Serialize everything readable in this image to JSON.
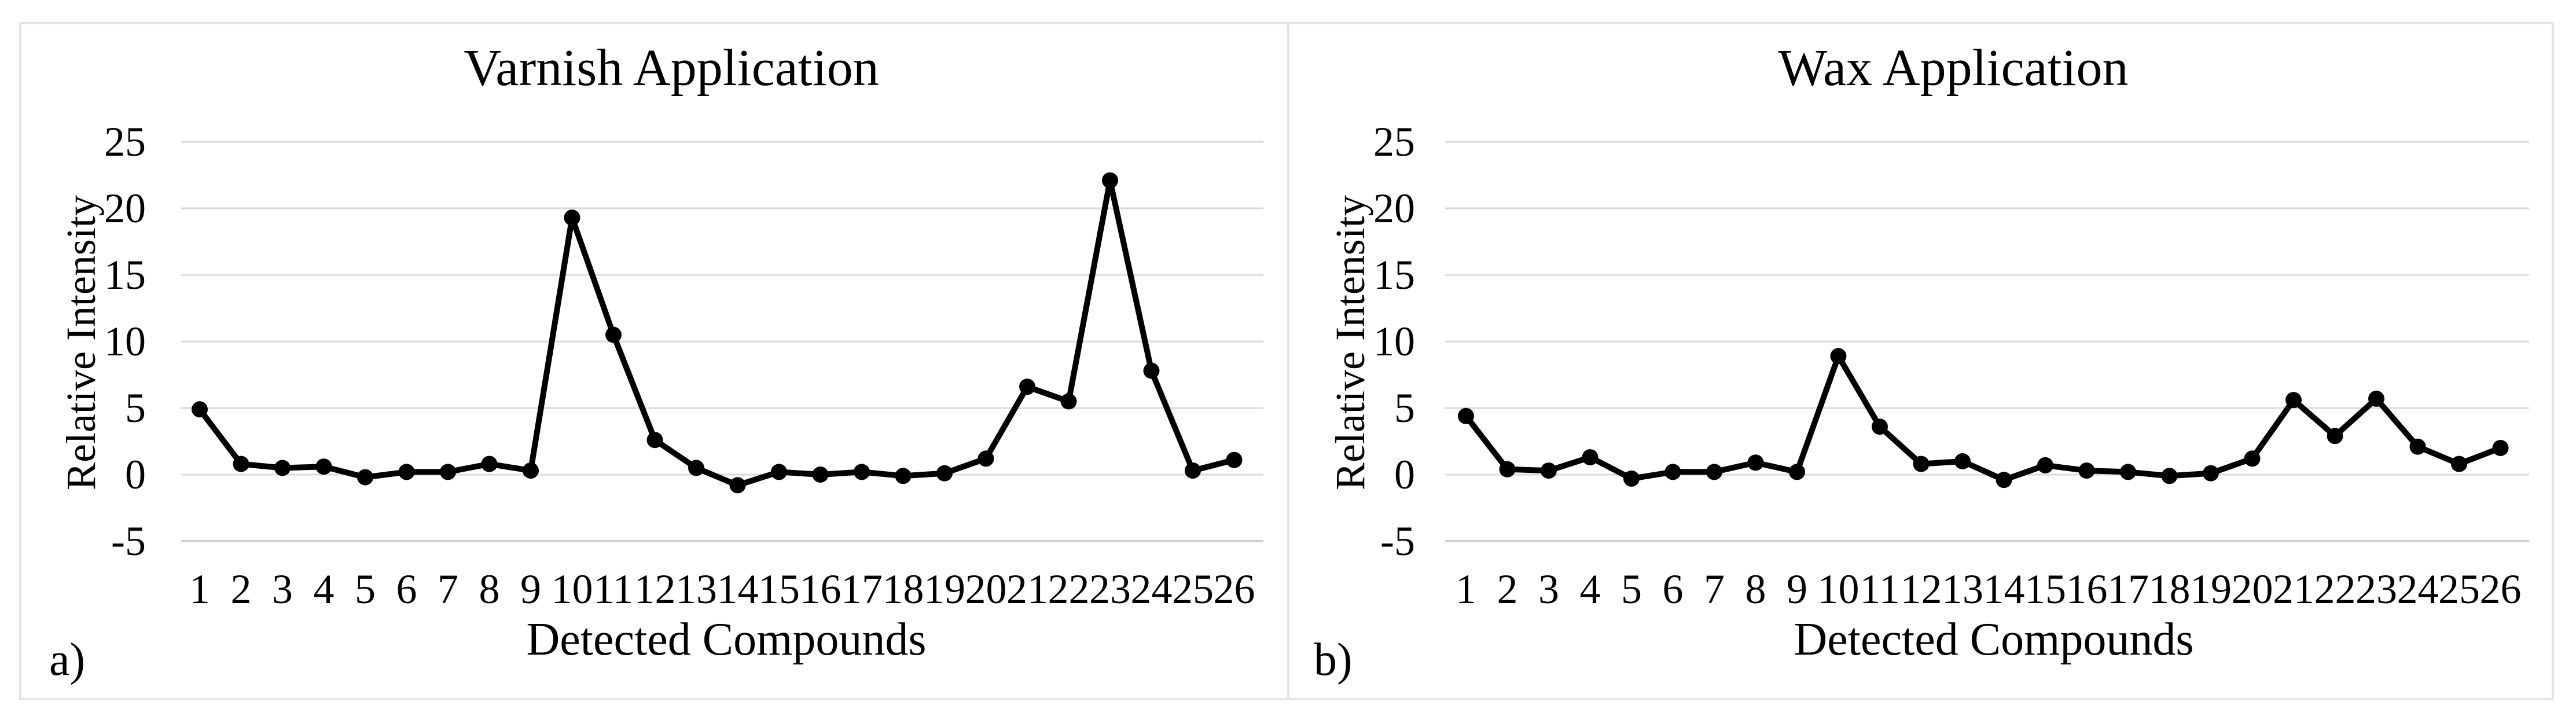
{
  "figure": {
    "background_color": "#ffffff",
    "frame_border_color": "#e4e4e4",
    "gridline_color": "#d9d9d9",
    "axis_line_color": "#cfcfcf",
    "series_color": "#000000",
    "text_color": "#000000"
  },
  "chart_data": [
    {
      "type": "line",
      "panel_letter": "a)",
      "title": "Varnish Application",
      "xlabel": "Detected Compounds",
      "ylabel": "Relative Intensity",
      "categories": [
        "1",
        "2",
        "3",
        "4",
        "5",
        "6",
        "7",
        "8",
        "9",
        "10",
        "11",
        "12",
        "13",
        "14",
        "15",
        "16",
        "17",
        "18",
        "19",
        "20",
        "21",
        "22",
        "23",
        "24",
        "25",
        "26"
      ],
      "values": [
        4.9,
        0.8,
        0.5,
        0.6,
        -0.2,
        0.2,
        0.2,
        0.8,
        0.3,
        19.3,
        10.5,
        2.6,
        0.5,
        -0.8,
        0.2,
        0.0,
        0.2,
        -0.1,
        0.1,
        1.2,
        6.6,
        5.5,
        22.1,
        7.8,
        0.3,
        1.1
      ],
      "yticks": [
        25,
        20,
        15,
        10,
        5,
        0,
        -5
      ],
      "ylim": [
        -5,
        25
      ],
      "grid": "horizontal",
      "legend": "none",
      "marker": "filled-circle",
      "line_color": "#000000"
    },
    {
      "type": "line",
      "panel_letter": "b)",
      "title": "Wax Application",
      "xlabel": "Detected Compounds",
      "ylabel": "Relative Intensity",
      "categories": [
        "1",
        "2",
        "3",
        "4",
        "5",
        "6",
        "7",
        "8",
        "9",
        "10",
        "11",
        "12",
        "13",
        "14",
        "15",
        "16",
        "17",
        "18",
        "19",
        "20",
        "21",
        "22",
        "23",
        "24",
        "25",
        "26"
      ],
      "values": [
        4.4,
        0.4,
        0.3,
        1.3,
        -0.3,
        0.2,
        0.2,
        0.9,
        0.2,
        8.9,
        3.6,
        0.8,
        1.0,
        -0.4,
        0.7,
        0.3,
        0.2,
        -0.1,
        0.1,
        1.2,
        5.6,
        2.9,
        5.7,
        2.1,
        0.8,
        2.0
      ],
      "yticks": [
        25,
        20,
        15,
        10,
        5,
        0,
        -5
      ],
      "ylim": [
        -5,
        25
      ],
      "grid": "horizontal",
      "legend": "none",
      "marker": "filled-circle",
      "line_color": "#000000"
    }
  ]
}
